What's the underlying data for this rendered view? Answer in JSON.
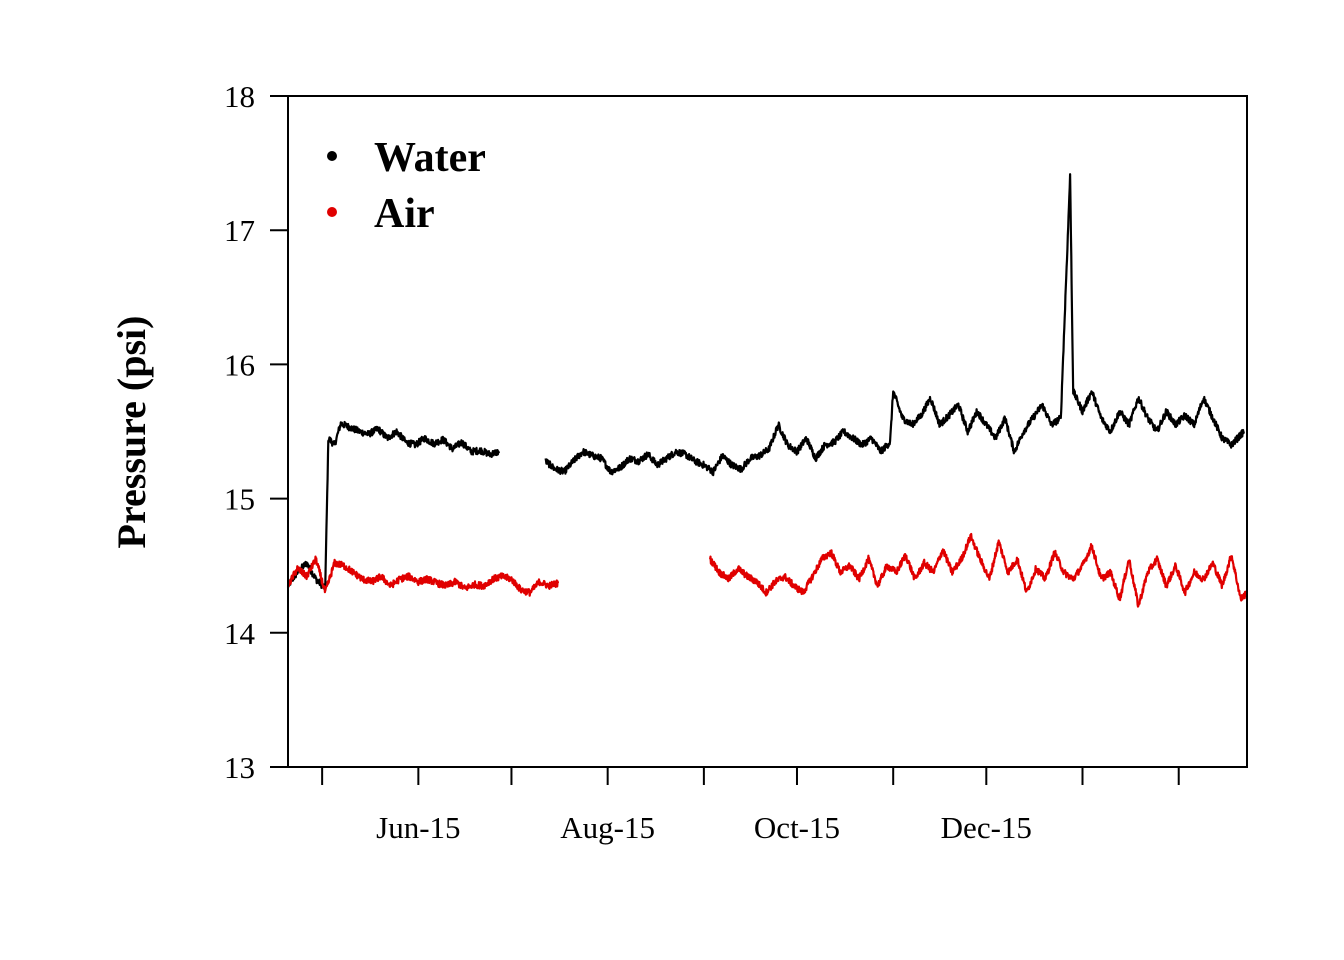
{
  "chart_data": {
    "type": "scatter",
    "title": "",
    "xlabel": "",
    "ylabel": "Pressure (psi)",
    "xlim": [
      "2015-04-20",
      "2016-02-23"
    ],
    "ylim": [
      13,
      18
    ],
    "y_ticks": [
      13,
      14,
      15,
      16,
      17,
      18
    ],
    "x_tick_labels": [
      {
        "date": "2015-06-01",
        "label": "Jun-15"
      },
      {
        "date": "2015-08-01",
        "label": "Aug-15"
      },
      {
        "date": "2015-10-01",
        "label": "Oct-15"
      },
      {
        "date": "2015-12-01",
        "label": "Dec-15"
      }
    ],
    "x_minor_ticks": [
      "2015-05-01",
      "2015-06-01",
      "2015-07-01",
      "2015-08-01",
      "2015-09-01",
      "2015-10-01",
      "2015-11-01",
      "2015-12-01",
      "2016-01-01",
      "2016-02-01"
    ],
    "legend": {
      "position": "top-left"
    },
    "series": [
      {
        "name": "Water",
        "color": "#000000",
        "segments": [
          [
            [
              "2015-04-20",
              14.35
            ],
            [
              "2015-04-23",
              14.45
            ],
            [
              "2015-04-26",
              14.52
            ],
            [
              "2015-04-29",
              14.4
            ],
            [
              "2015-05-02",
              14.33
            ],
            [
              "2015-05-03",
              15.45
            ],
            [
              "2015-05-05",
              15.4
            ],
            [
              "2015-05-07",
              15.56
            ],
            [
              "2015-05-10",
              15.53
            ],
            [
              "2015-05-13",
              15.5
            ],
            [
              "2015-05-16",
              15.48
            ],
            [
              "2015-05-19",
              15.52
            ],
            [
              "2015-05-22",
              15.45
            ],
            [
              "2015-05-25",
              15.5
            ],
            [
              "2015-05-28",
              15.42
            ],
            [
              "2015-05-31",
              15.4
            ],
            [
              "2015-06-03",
              15.45
            ],
            [
              "2015-06-06",
              15.41
            ],
            [
              "2015-06-09",
              15.44
            ],
            [
              "2015-06-12",
              15.37
            ],
            [
              "2015-06-15",
              15.42
            ],
            [
              "2015-06-18",
              15.35
            ],
            [
              "2015-06-21",
              15.36
            ],
            [
              "2015-06-24",
              15.33
            ],
            [
              "2015-06-27",
              15.35
            ]
          ],
          [
            [
              "2015-07-12",
              15.28
            ],
            [
              "2015-07-15",
              15.22
            ],
            [
              "2015-07-18",
              15.2
            ],
            [
              "2015-07-21",
              15.28
            ],
            [
              "2015-07-24",
              15.35
            ],
            [
              "2015-07-27",
              15.32
            ],
            [
              "2015-07-30",
              15.3
            ],
            [
              "2015-08-02",
              15.2
            ],
            [
              "2015-08-05",
              15.23
            ],
            [
              "2015-08-08",
              15.3
            ],
            [
              "2015-08-11",
              15.28
            ],
            [
              "2015-08-14",
              15.33
            ],
            [
              "2015-08-17",
              15.25
            ],
            [
              "2015-08-20",
              15.3
            ],
            [
              "2015-08-23",
              15.35
            ],
            [
              "2015-08-26",
              15.33
            ],
            [
              "2015-08-29",
              15.28
            ],
            [
              "2015-09-01",
              15.25
            ],
            [
              "2015-09-04",
              15.2
            ],
            [
              "2015-09-07",
              15.32
            ],
            [
              "2015-09-10",
              15.25
            ],
            [
              "2015-09-13",
              15.22
            ],
            [
              "2015-09-16",
              15.3
            ],
            [
              "2015-09-19",
              15.32
            ],
            [
              "2015-09-22",
              15.37
            ],
            [
              "2015-09-25",
              15.55
            ],
            [
              "2015-09-28",
              15.4
            ],
            [
              "2015-10-01",
              15.35
            ],
            [
              "2015-10-04",
              15.45
            ],
            [
              "2015-10-07",
              15.3
            ],
            [
              "2015-10-10",
              15.4
            ],
            [
              "2015-10-13",
              15.42
            ],
            [
              "2015-10-16",
              15.5
            ],
            [
              "2015-10-19",
              15.45
            ],
            [
              "2015-10-22",
              15.4
            ],
            [
              "2015-10-25",
              15.45
            ],
            [
              "2015-10-28",
              15.35
            ],
            [
              "2015-10-31",
              15.42
            ],
            [
              "2015-11-01",
              15.8
            ],
            [
              "2015-11-04",
              15.6
            ],
            [
              "2015-11-07",
              15.55
            ],
            [
              "2015-11-10",
              15.62
            ],
            [
              "2015-11-13",
              15.75
            ],
            [
              "2015-11-16",
              15.55
            ],
            [
              "2015-11-19",
              15.62
            ],
            [
              "2015-11-22",
              15.7
            ],
            [
              "2015-11-25",
              15.5
            ],
            [
              "2015-11-28",
              15.65
            ],
            [
              "2015-12-01",
              15.55
            ],
            [
              "2015-12-04",
              15.45
            ],
            [
              "2015-12-07",
              15.6
            ],
            [
              "2015-12-10",
              15.35
            ],
            [
              "2015-12-13",
              15.5
            ],
            [
              "2015-12-16",
              15.6
            ],
            [
              "2015-12-19",
              15.7
            ],
            [
              "2015-12-22",
              15.55
            ],
            [
              "2015-12-25",
              15.6
            ],
            [
              "2015-12-28",
              17.4
            ],
            [
              "2015-12-29",
              15.8
            ],
            [
              "2016-01-01",
              15.65
            ],
            [
              "2016-01-04",
              15.8
            ],
            [
              "2016-01-07",
              15.6
            ],
            [
              "2016-01-10",
              15.5
            ],
            [
              "2016-01-13",
              15.65
            ],
            [
              "2016-01-16",
              15.55
            ],
            [
              "2016-01-19",
              15.75
            ],
            [
              "2016-01-22",
              15.6
            ],
            [
              "2016-01-25",
              15.5
            ],
            [
              "2016-01-28",
              15.65
            ],
            [
              "2016-01-31",
              15.55
            ],
            [
              "2016-02-03",
              15.62
            ],
            [
              "2016-02-06",
              15.55
            ],
            [
              "2016-02-09",
              15.75
            ],
            [
              "2016-02-12",
              15.6
            ],
            [
              "2016-02-15",
              15.45
            ],
            [
              "2016-02-18",
              15.4
            ],
            [
              "2016-02-22",
              15.5
            ]
          ]
        ]
      },
      {
        "name": "Air",
        "color": "#e00000",
        "segments": [
          [
            [
              "2015-04-20",
              14.35
            ],
            [
              "2015-04-23",
              14.48
            ],
            [
              "2015-04-26",
              14.42
            ],
            [
              "2015-04-29",
              14.55
            ],
            [
              "2015-05-02",
              14.3
            ],
            [
              "2015-05-05",
              14.52
            ],
            [
              "2015-05-08",
              14.5
            ],
            [
              "2015-05-11",
              14.45
            ],
            [
              "2015-05-14",
              14.4
            ],
            [
              "2015-05-17",
              14.38
            ],
            [
              "2015-05-20",
              14.42
            ],
            [
              "2015-05-23",
              14.35
            ],
            [
              "2015-05-26",
              14.4
            ],
            [
              "2015-05-29",
              14.42
            ],
            [
              "2015-06-01",
              14.38
            ],
            [
              "2015-06-04",
              14.4
            ],
            [
              "2015-06-07",
              14.37
            ],
            [
              "2015-06-10",
              14.35
            ],
            [
              "2015-06-13",
              14.38
            ],
            [
              "2015-06-16",
              14.33
            ],
            [
              "2015-06-19",
              14.36
            ],
            [
              "2015-06-22",
              14.35
            ],
            [
              "2015-06-25",
              14.4
            ],
            [
              "2015-06-28",
              14.42
            ],
            [
              "2015-07-01",
              14.4
            ],
            [
              "2015-07-04",
              14.32
            ],
            [
              "2015-07-07",
              14.3
            ],
            [
              "2015-07-10",
              14.38
            ],
            [
              "2015-07-13",
              14.35
            ],
            [
              "2015-07-16",
              14.37
            ]
          ],
          [
            [
              "2015-09-03",
              14.55
            ],
            [
              "2015-09-06",
              14.45
            ],
            [
              "2015-09-09",
              14.4
            ],
            [
              "2015-09-12",
              14.48
            ],
            [
              "2015-09-15",
              14.42
            ],
            [
              "2015-09-18",
              14.38
            ],
            [
              "2015-09-21",
              14.3
            ],
            [
              "2015-09-24",
              14.38
            ],
            [
              "2015-09-27",
              14.42
            ],
            [
              "2015-09-30",
              14.35
            ],
            [
              "2015-10-03",
              14.3
            ],
            [
              "2015-10-06",
              14.42
            ],
            [
              "2015-10-09",
              14.55
            ],
            [
              "2015-10-12",
              14.6
            ],
            [
              "2015-10-15",
              14.45
            ],
            [
              "2015-10-18",
              14.5
            ],
            [
              "2015-10-21",
              14.4
            ],
            [
              "2015-10-24",
              14.55
            ],
            [
              "2015-10-27",
              14.35
            ],
            [
              "2015-10-30",
              14.5
            ],
            [
              "2015-11-02",
              14.45
            ],
            [
              "2015-11-05",
              14.58
            ],
            [
              "2015-11-08",
              14.4
            ],
            [
              "2015-11-11",
              14.52
            ],
            [
              "2015-11-14",
              14.45
            ],
            [
              "2015-11-17",
              14.62
            ],
            [
              "2015-11-20",
              14.45
            ],
            [
              "2015-11-23",
              14.55
            ],
            [
              "2015-11-26",
              14.72
            ],
            [
              "2015-11-29",
              14.55
            ],
            [
              "2015-12-02",
              14.4
            ],
            [
              "2015-12-05",
              14.68
            ],
            [
              "2015-12-08",
              14.45
            ],
            [
              "2015-12-11",
              14.55
            ],
            [
              "2015-12-14",
              14.3
            ],
            [
              "2015-12-17",
              14.48
            ],
            [
              "2015-12-20",
              14.4
            ],
            [
              "2015-12-23",
              14.6
            ],
            [
              "2015-12-26",
              14.45
            ],
            [
              "2015-12-29",
              14.4
            ],
            [
              "2016-01-01",
              14.5
            ],
            [
              "2016-01-04",
              14.65
            ],
            [
              "2016-01-07",
              14.4
            ],
            [
              "2016-01-10",
              14.45
            ],
            [
              "2016-01-13",
              14.25
            ],
            [
              "2016-01-16",
              14.55
            ],
            [
              "2016-01-19",
              14.2
            ],
            [
              "2016-01-22",
              14.45
            ],
            [
              "2016-01-25",
              14.55
            ],
            [
              "2016-01-28",
              14.35
            ],
            [
              "2016-01-31",
              14.5
            ],
            [
              "2016-02-03",
              14.3
            ],
            [
              "2016-02-06",
              14.45
            ],
            [
              "2016-02-09",
              14.4
            ],
            [
              "2016-02-12",
              14.52
            ],
            [
              "2016-02-15",
              14.35
            ],
            [
              "2016-02-18",
              14.58
            ],
            [
              "2016-02-21",
              14.25
            ],
            [
              "2016-02-23",
              14.3
            ]
          ]
        ]
      }
    ]
  }
}
